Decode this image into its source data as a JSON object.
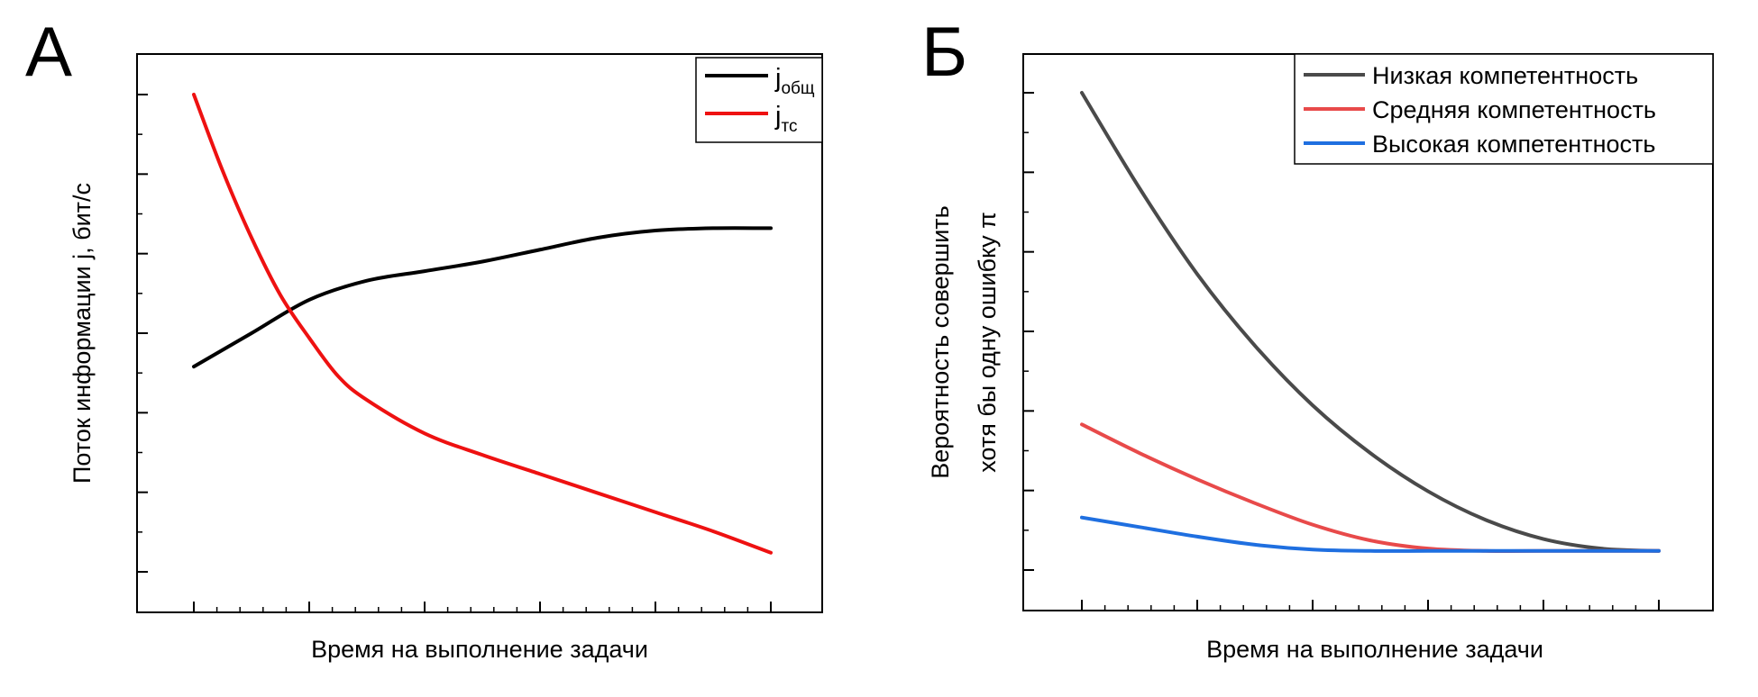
{
  "chart_data": [
    {
      "panel_letter": "А",
      "type": "line",
      "xlabel": "Время на выполнение задачи",
      "ylabel": "Поток информации j, бит/с",
      "tick_labels_shown": false,
      "xlim": [
        0,
        1
      ],
      "ylim": [
        0,
        1
      ],
      "legend": {
        "placement": "top-right",
        "entries": [
          {
            "base": "j",
            "sub": "общ"
          },
          {
            "base": "j",
            "sub": "тс"
          }
        ]
      },
      "series": [
        {
          "name": "jобщ",
          "color": "#000000",
          "x": [
            0,
            0.1,
            0.2,
            0.3,
            0.4,
            0.5,
            0.6,
            0.7,
            0.8,
            0.9,
            1.0
          ],
          "y": [
            0.43,
            0.5,
            0.57,
            0.61,
            0.63,
            0.65,
            0.675,
            0.7,
            0.715,
            0.72,
            0.72
          ]
        },
        {
          "name": "jтс",
          "color": "#ee1111",
          "x": [
            0,
            0.05,
            0.1,
            0.15,
            0.2,
            0.25,
            0.3,
            0.4,
            0.5,
            0.6,
            0.7,
            0.8,
            0.9,
            1.0
          ],
          "y": [
            1.0,
            0.84,
            0.7,
            0.58,
            0.49,
            0.41,
            0.36,
            0.29,
            0.245,
            0.205,
            0.165,
            0.125,
            0.085,
            0.04
          ]
        }
      ]
    },
    {
      "panel_letter": "Б",
      "type": "line",
      "xlabel": "Время на выполнение задачи",
      "ylabel_lines": [
        "Вероятность совершить",
        "хотя бы одну ошибку π"
      ],
      "tick_labels_shown": false,
      "xlim": [
        0,
        1
      ],
      "ylim": [
        0,
        1
      ],
      "legend": {
        "placement": "top-right",
        "entries": [
          {
            "label": "Низкая компетентность"
          },
          {
            "label": "Средняя компетентность"
          },
          {
            "label": "Высокая компетентность"
          }
        ]
      },
      "series": [
        {
          "name": "Низкая компетентность",
          "color": "#4a4a4a",
          "x": [
            0,
            0.1,
            0.2,
            0.3,
            0.4,
            0.5,
            0.6,
            0.7,
            0.8,
            0.9,
            1.0
          ],
          "y": [
            1.0,
            0.8,
            0.62,
            0.47,
            0.345,
            0.245,
            0.165,
            0.105,
            0.065,
            0.045,
            0.04
          ]
        },
        {
          "name": "Средняя компетентность",
          "color": "#e84a4a",
          "x": [
            0,
            0.1,
            0.2,
            0.3,
            0.4,
            0.5,
            0.6,
            0.7,
            0.8,
            0.9,
            1.0
          ],
          "y": [
            0.305,
            0.245,
            0.19,
            0.14,
            0.095,
            0.062,
            0.045,
            0.04,
            0.04,
            0.04,
            0.04
          ]
        },
        {
          "name": "Высокая компетентность",
          "color": "#1f6fe0",
          "x": [
            0,
            0.1,
            0.2,
            0.3,
            0.4,
            0.5,
            0.6,
            0.7,
            0.8,
            0.9,
            1.0
          ],
          "y": [
            0.11,
            0.09,
            0.07,
            0.053,
            0.043,
            0.04,
            0.04,
            0.04,
            0.04,
            0.04,
            0.04
          ]
        }
      ]
    }
  ]
}
